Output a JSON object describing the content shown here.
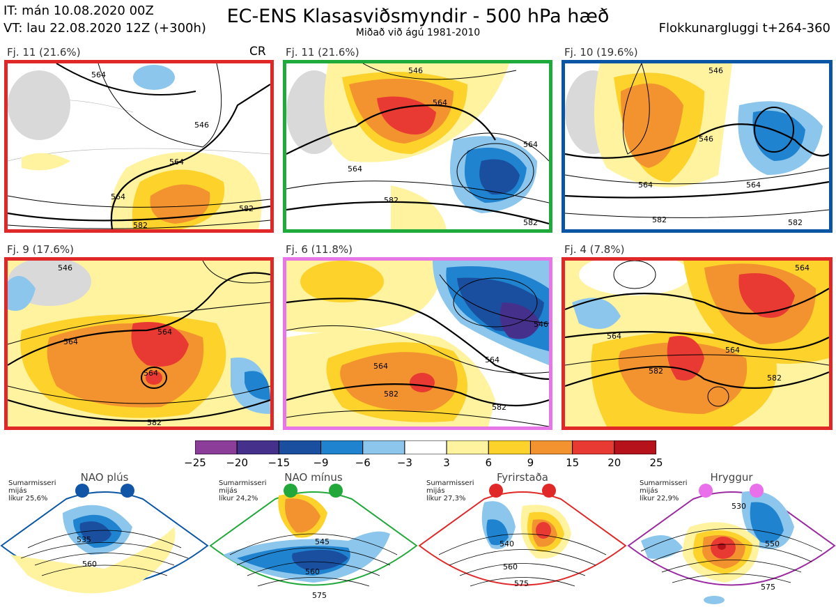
{
  "header": {
    "it": "IT: mán 10.08.2020 00Z",
    "vt": "VT: lau 22.08.2020 12Z  (+300h)",
    "title": "EC-ENS Klasasviðsmyndir - 500 hPa hæð",
    "subtitle": "Miðað við ágú 1981-2010",
    "window": "Flokkunargluggi t+264-360"
  },
  "clusters": [
    {
      "label": "Fj. 11 (21.6%)",
      "border": "#e02828",
      "extra": "CR",
      "contours": [
        "564",
        "546",
        "564",
        "564",
        "582",
        "582"
      ]
    },
    {
      "label": "Fj. 11 (21.6%)",
      "border": "#1faa3c",
      "contours": [
        "546",
        "564",
        "564",
        "564",
        "582",
        "582"
      ]
    },
    {
      "label": "Fj. 10 (19.6%)",
      "border": "#0b56a4",
      "contours": [
        "546",
        "546",
        "564",
        "564",
        "582",
        "582"
      ]
    },
    {
      "label": "Fj. 9 (17.6%)",
      "border": "#e02828",
      "contours": [
        "546",
        "564",
        "564",
        "564",
        "582"
      ]
    },
    {
      "label": "Fj. 6 (11.8%)",
      "border": "#e777e7",
      "contours": [
        "546",
        "564",
        "564",
        "582",
        "582"
      ]
    },
    {
      "label": "Fj. 4 (7.8%)",
      "border": "#e02828",
      "contours": [
        "564",
        "564",
        "564",
        "582",
        "582"
      ]
    }
  ],
  "colorbar": {
    "ticks": [
      "−25",
      "−20",
      "−15",
      "−9",
      "−6",
      "−3",
      "3",
      "6",
      "9",
      "15",
      "20",
      "25"
    ],
    "colors": [
      "#8c3d9a",
      "#45318c",
      "#1a4fa0",
      "#1f83cf",
      "#8cc6ec",
      "#ffffff",
      "#fff3a0",
      "#fdd22a",
      "#f39330",
      "#e83a32",
      "#b5121b"
    ]
  },
  "regimes": [
    {
      "name": "NAO plús",
      "note": [
        "Sumarmisseri",
        "mijás",
        "líkur 25,6%"
      ],
      "color": "#1155a6",
      "labels": [
        "535",
        "560"
      ]
    },
    {
      "name": "NAO mínus",
      "note": [
        "Sumarmisseri",
        "mijás",
        "líkur 24,2%"
      ],
      "color": "#22a83a",
      "labels": [
        "545",
        "560",
        "575"
      ]
    },
    {
      "name": "Fyrirstaða",
      "note": [
        "Sumarmisseri",
        "mijás",
        "líkur 27,3%"
      ],
      "color": "#e02828",
      "labels": [
        "540",
        "560",
        "575"
      ]
    },
    {
      "name": "Hryggur",
      "note": [
        "Sumarmisseri",
        "mijás",
        "líkur 22,9%"
      ],
      "color": "#9a2aa0",
      "labels": [
        "530",
        "550",
        "575"
      ]
    }
  ]
}
